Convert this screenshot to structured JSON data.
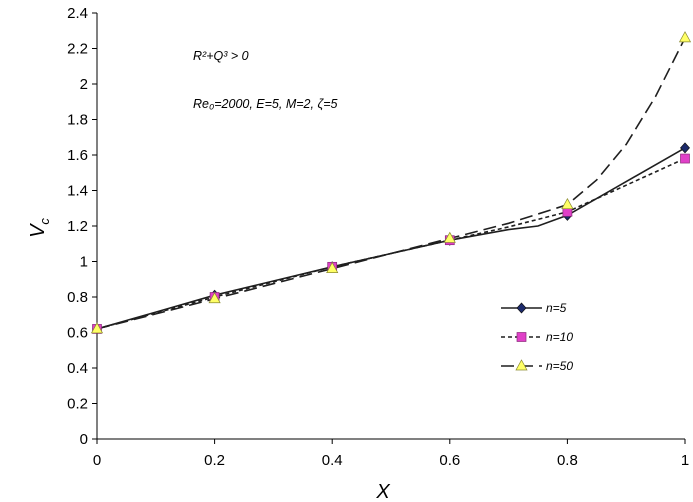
{
  "chart_data": {
    "type": "line",
    "xlabel": "X",
    "ylabel_main": "V",
    "ylabel_sub": "c",
    "xlim": [
      0,
      1
    ],
    "ylim": [
      0,
      2.4
    ],
    "xticks": [
      "0",
      "0.2",
      "0.4",
      "0.6",
      "0.8",
      "1"
    ],
    "yticks": [
      "0",
      "0.2",
      "0.4",
      "0.6",
      "0.8",
      "1",
      "1.2",
      "1.4",
      "1.6",
      "1.8",
      "2",
      "2.2",
      "2.4"
    ],
    "grid": false,
    "legend_position": "right-middle",
    "annotations": {
      "condition": "R²+Q³ > 0",
      "params": "Re₀=2000, E=5, M=2, ζ=5"
    },
    "x": [
      0,
      0.2,
      0.4,
      0.6,
      0.8,
      1
    ],
    "series": [
      {
        "name": "n=5",
        "values": [
          0.62,
          0.81,
          0.97,
          1.12,
          1.26,
          1.64
        ],
        "curve": [
          [
            0,
            0.62
          ],
          [
            0.1,
            0.715
          ],
          [
            0.2,
            0.81
          ],
          [
            0.3,
            0.89
          ],
          [
            0.4,
            0.97
          ],
          [
            0.5,
            1.045
          ],
          [
            0.6,
            1.12
          ],
          [
            0.7,
            1.18
          ],
          [
            0.75,
            1.2
          ],
          [
            0.8,
            1.26
          ],
          [
            0.9,
            1.45
          ],
          [
            1,
            1.64
          ]
        ],
        "color": "#1f1f1f",
        "marker_color": "#1c2a6b",
        "marker": "diamond",
        "dash": "solid"
      },
      {
        "name": "n=10",
        "values": [
          0.62,
          0.8,
          0.97,
          1.12,
          1.28,
          1.58
        ],
        "curve": [
          [
            0,
            0.62
          ],
          [
            0.1,
            0.71
          ],
          [
            0.2,
            0.8
          ],
          [
            0.3,
            0.885
          ],
          [
            0.4,
            0.97
          ],
          [
            0.5,
            1.045
          ],
          [
            0.6,
            1.12
          ],
          [
            0.7,
            1.195
          ],
          [
            0.8,
            1.28
          ],
          [
            0.9,
            1.43
          ],
          [
            1,
            1.58
          ]
        ],
        "color": "#1f1f1f",
        "marker_color": "#e040c8",
        "marker": "square",
        "dash": "short-dash"
      },
      {
        "name": "n=50",
        "values": [
          0.62,
          0.79,
          0.96,
          1.13,
          1.32,
          2.26
        ],
        "curve": [
          [
            0,
            0.62
          ],
          [
            0.1,
            0.705
          ],
          [
            0.2,
            0.79
          ],
          [
            0.3,
            0.875
          ],
          [
            0.4,
            0.96
          ],
          [
            0.5,
            1.045
          ],
          [
            0.6,
            1.13
          ],
          [
            0.7,
            1.215
          ],
          [
            0.8,
            1.32
          ],
          [
            0.85,
            1.46
          ],
          [
            0.9,
            1.66
          ],
          [
            0.95,
            1.93
          ],
          [
            1,
            2.26
          ]
        ],
        "color": "#1f1f1f",
        "marker_color": "#ffff66",
        "marker": "triangle",
        "dash": "long-dash"
      }
    ]
  }
}
